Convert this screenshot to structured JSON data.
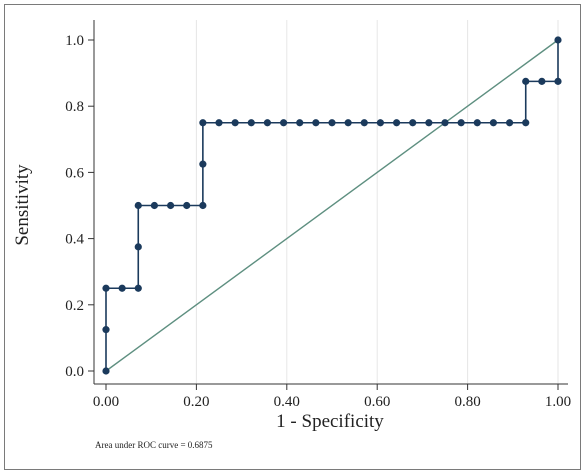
{
  "chart_data": {
    "type": "line",
    "title": "",
    "xlabel": "1 - Specificity",
    "ylabel": "Sensitivity",
    "xlim": [
      0,
      1
    ],
    "ylim": [
      0,
      1
    ],
    "x_ticks": [
      "0.00",
      "0.20",
      "0.40",
      "0.60",
      "0.80",
      "1.00"
    ],
    "y_ticks": [
      "0.0",
      "0.2",
      "0.4",
      "0.6",
      "0.8",
      "1.0"
    ],
    "grid": true,
    "legend": "none",
    "annotation": "Area under ROC curve = 0.6875",
    "colors": {
      "curve": "#1b3a5c",
      "reference": "#5e8f80",
      "grid": "#e6e6e6"
    },
    "series": [
      {
        "x": [
          0,
          0,
          0,
          0.0357,
          0.0714,
          0.0714,
          0.0714,
          0.1071,
          0.1429,
          0.1786,
          0.2143,
          0.2143,
          0.2143,
          0.25,
          0.2857,
          0.3214,
          0.3571,
          0.3929,
          0.4286,
          0.4643,
          0.5,
          0.5357,
          0.5714,
          0.6071,
          0.6429,
          0.6786,
          0.7143,
          0.75,
          0.7857,
          0.8214,
          0.8571,
          0.8929,
          0.9286,
          0.9286,
          0.9643,
          1,
          1
        ],
        "y": [
          0,
          0.125,
          0.25,
          0.25,
          0.25,
          0.375,
          0.5,
          0.5,
          0.5,
          0.5,
          0.5,
          0.625,
          0.75,
          0.75,
          0.75,
          0.75,
          0.75,
          0.75,
          0.75,
          0.75,
          0.75,
          0.75,
          0.75,
          0.75,
          0.75,
          0.75,
          0.75,
          0.75,
          0.75,
          0.75,
          0.75,
          0.75,
          0.75,
          0.875,
          0.875,
          0.875,
          1
        ]
      },
      {
        "x": [
          0,
          1
        ],
        "y": [
          0,
          1
        ]
      }
    ]
  }
}
